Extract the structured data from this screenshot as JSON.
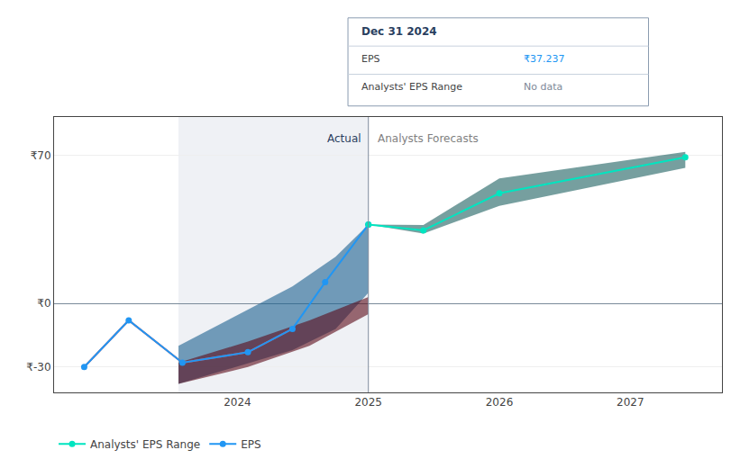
{
  "chart_data": {
    "type": "line",
    "xlim": [
      2022.6,
      2027.7
    ],
    "xticks": [
      2024,
      2025,
      2026,
      2027
    ],
    "ylim": [
      -42,
      88
    ],
    "yticks": [
      {
        "value": -30,
        "label": "₹-30"
      },
      {
        "value": 0,
        "label": "₹0"
      },
      {
        "value": 70,
        "label": "₹70"
      }
    ],
    "grid": "y",
    "legend": "lower left",
    "shaded_x": [
      2023.55,
      2025.0
    ],
    "vlines": [
      2025.0
    ],
    "series": [
      {
        "type": "band",
        "color": "#1a6090",
        "x": [
          2023.55,
          2024.42,
          2024.75,
          2025.0
        ],
        "upper": [
          -20,
          8,
          22,
          37.237
        ],
        "lower": [
          -38,
          -22,
          -12,
          5
        ]
      },
      {
        "type": "band",
        "color": "#5a0a18",
        "x": [
          2023.55,
          2024.08,
          2024.55,
          2025.0
        ],
        "upper": [
          -28,
          -18,
          -8,
          3
        ],
        "lower": [
          -38,
          -30,
          -20,
          -5
        ]
      },
      {
        "type": "line",
        "color": "#e05050",
        "x": [
          2022.83,
          2023.17,
          2023.58,
          2024.08,
          2024.42
        ],
        "values": [
          -30,
          -8,
          -28,
          -23,
          -12
        ]
      },
      {
        "type": "line",
        "name": "EPS",
        "color": "#2196f3",
        "marker": "circle",
        "x": [
          2022.83,
          2023.17,
          2023.58,
          2024.08,
          2024.42,
          2024.67,
          2025.0
        ],
        "values": [
          -30,
          -8,
          -28,
          -23,
          -12,
          10,
          37.237
        ]
      },
      {
        "type": "band",
        "color": "#1a5f5f",
        "x": [
          2025.0,
          2025.42,
          2026.0,
          2027.42
        ],
        "upper": [
          37.237,
          37.0,
          59.0,
          71.5
        ],
        "lower": [
          37.237,
          33.0,
          46.0,
          64.0
        ]
      },
      {
        "type": "line",
        "name": "Analysts' EPS Range",
        "color": "#00e5c0",
        "marker": "circle",
        "x": [
          2025.0,
          2025.42,
          2026.0,
          2027.42
        ],
        "values": [
          37.237,
          34.5,
          52.0,
          69.0
        ]
      }
    ],
    "annotations": [
      {
        "text": "Actual",
        "x": 2024.96,
        "y": 74
      },
      {
        "text": "Analysts Forecasts",
        "x": 2025.06,
        "y": 74
      }
    ],
    "tooltip": {
      "title": "Dec 31 2024",
      "rows": [
        {
          "label": "EPS",
          "value": "₹37.237",
          "color": "#2196f3"
        },
        {
          "label": "Analysts' EPS Range",
          "value": "No data",
          "color": "#808898"
        }
      ]
    }
  }
}
